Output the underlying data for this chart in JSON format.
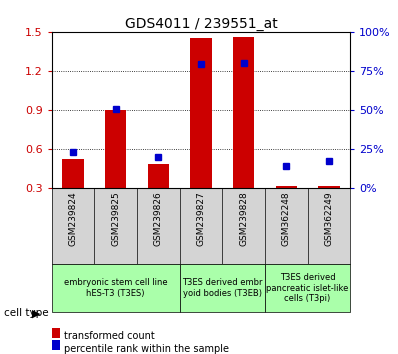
{
  "title": "GDS4011 / 239551_at",
  "samples": [
    "GSM239824",
    "GSM239825",
    "GSM239826",
    "GSM239827",
    "GSM239828",
    "GSM362248",
    "GSM362249"
  ],
  "red_values": [
    0.52,
    0.9,
    0.48,
    1.45,
    1.46,
    0.31,
    0.31
  ],
  "blue_values": [
    0.575,
    0.905,
    0.535,
    1.25,
    1.26,
    0.465,
    0.505
  ],
  "ylim_left": [
    0.3,
    1.5
  ],
  "ylim_right": [
    0,
    100
  ],
  "yticks_left": [
    0.3,
    0.6,
    0.9,
    1.2,
    1.5
  ],
  "yticks_right": [
    0,
    25,
    50,
    75,
    100
  ],
  "ytick_labels_right": [
    "0%",
    "25%",
    "50%",
    "75%",
    "100%"
  ],
  "red_color": "#cc0000",
  "blue_color": "#0000cc",
  "bar_width": 0.5,
  "groups": [
    {
      "label": "embryonic stem cell line\nhES-T3 (T3ES)",
      "start": 0,
      "end": 3,
      "color": "#aaffaa"
    },
    {
      "label": "T3ES derived embr\nyoid bodies (T3EB)",
      "start": 3,
      "end": 5,
      "color": "#aaffaa"
    },
    {
      "label": "T3ES derived\npancreatic islet-like\ncells (T3pi)",
      "start": 5,
      "end": 7,
      "color": "#aaffaa"
    }
  ],
  "xlabel_area_color": "#d4d4d4",
  "legend_red_label": "transformed count",
  "legend_blue_label": "percentile rank within the sample",
  "cell_type_label": "cell type"
}
